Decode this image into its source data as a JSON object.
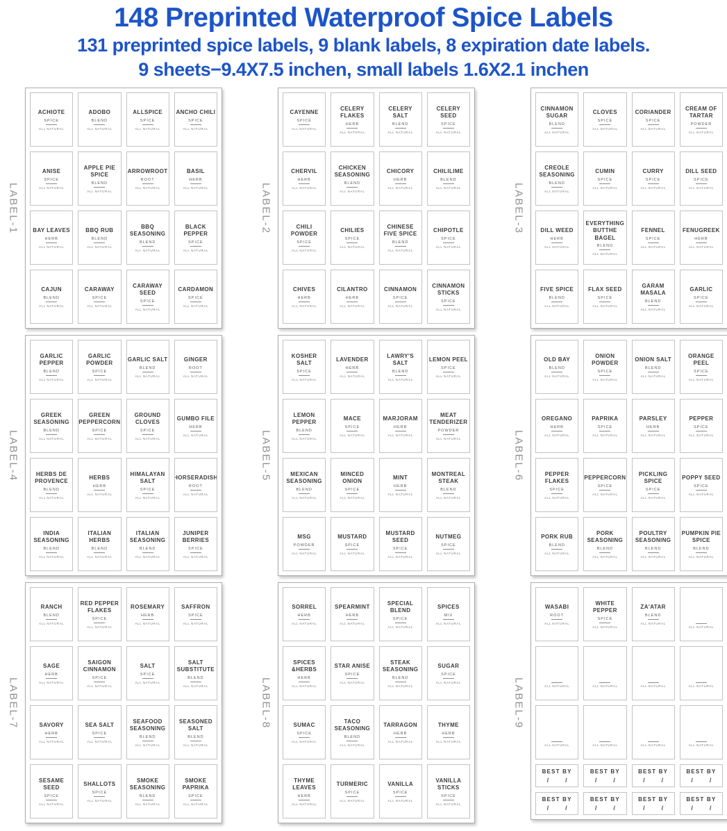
{
  "header": {
    "title": "148 Preprinted Waterproof Spice Labels",
    "subtitle1": "131 preprinted spice labels, 9 blank labels, 8 expiration date labels.",
    "subtitle2": "9 sheets−9.4X7.5 inchen, small labels 1.6X2.1 inchen"
  },
  "colors": {
    "title_blue": "#1d55c8",
    "label_text": "#3b3b3b",
    "side_label_gray": "#8f8f8f"
  },
  "common": {
    "footer": "ALL NATURAL",
    "best_by": "BEST BY",
    "slash": "/"
  },
  "sheets": [
    {
      "side_label": "LABEL-1",
      "cells": [
        {
          "name": "ACHIOTE",
          "type": "SPICE"
        },
        {
          "name": "ADOBO",
          "type": "BLEND"
        },
        {
          "name": "ALLSPICE",
          "type": "SPICE"
        },
        {
          "name": "ANCHO CHILI",
          "type": "SPICE"
        },
        {
          "name": "ANISE",
          "type": "SPICE"
        },
        {
          "name": "APPLE PIE SPICE",
          "type": "BLEND"
        },
        {
          "name": "ARROWROOT",
          "type": "ROOT"
        },
        {
          "name": "BASIL",
          "type": "HERB"
        },
        {
          "name": "BAY LEAVES",
          "type": "HERB"
        },
        {
          "name": "BBQ RUB",
          "type": "BLEND"
        },
        {
          "name": "BBQ SEASONING",
          "type": "BLEND"
        },
        {
          "name": "BLACK PEPPER",
          "type": "SPICE"
        },
        {
          "name": "CAJUN",
          "type": "BLEND"
        },
        {
          "name": "CARAWAY",
          "type": "SPICE"
        },
        {
          "name": "CARAWAY SEED",
          "type": "SPICE"
        },
        {
          "name": "CARDAMON",
          "type": "SPICE"
        }
      ]
    },
    {
      "side_label": "LABEL-2",
      "cells": [
        {
          "name": "CAYENNE",
          "type": "SPICE"
        },
        {
          "name": "CELERY FLAKES",
          "type": "HERB"
        },
        {
          "name": "CELERY SALT",
          "type": "BLEND"
        },
        {
          "name": "CELERY SEED",
          "type": "SPICE"
        },
        {
          "name": "CHERVIL",
          "type": "HERB"
        },
        {
          "name": "CHICKEN SEASONING",
          "type": "BLEND"
        },
        {
          "name": "CHICORY",
          "type": "HERB"
        },
        {
          "name": "CHILILIME",
          "type": "BLEND"
        },
        {
          "name": "CHILI POWDER",
          "type": "SPICE"
        },
        {
          "name": "CHILIES",
          "type": "SPICE"
        },
        {
          "name": "CHINESE FIVE SPICE",
          "type": "BLEND"
        },
        {
          "name": "CHIPOTLE",
          "type": "SPICE"
        },
        {
          "name": "CHIVES",
          "type": "HERB"
        },
        {
          "name": "CILANTRO",
          "type": "HERB"
        },
        {
          "name": "CINNAMON",
          "type": "SPICE"
        },
        {
          "name": "CINNAMON STICKS",
          "type": "SPICE"
        }
      ]
    },
    {
      "side_label": "LABEL-3",
      "cells": [
        {
          "name": "CINNAMON SUGAR",
          "type": "BLEND"
        },
        {
          "name": "CLOVES",
          "type": "SPICE"
        },
        {
          "name": "CORIANDER",
          "type": "SPICE"
        },
        {
          "name": "CREAM OF TARTAR",
          "type": "POWDER"
        },
        {
          "name": "CREOLE SEASONING",
          "type": "BLEND"
        },
        {
          "name": "CUMIN",
          "type": "SPICE"
        },
        {
          "name": "CURRY",
          "type": "SPICE"
        },
        {
          "name": "DILL SEED",
          "type": "SPICE"
        },
        {
          "name": "DILL WEED",
          "type": "HERB"
        },
        {
          "name": "EVERYTHING BUTTHE BAGEL",
          "type": "BLEND"
        },
        {
          "name": "FENNEL",
          "type": "SPICE"
        },
        {
          "name": "FENUGREEK",
          "type": "HERB"
        },
        {
          "name": "FIVE SPICE",
          "type": "BLEND"
        },
        {
          "name": "FLAX SEED",
          "type": "SPICE"
        },
        {
          "name": "GARAM MASALA",
          "type": "BLEND"
        },
        {
          "name": "GARLIC",
          "type": "SPICE"
        }
      ]
    },
    {
      "side_label": "LABEL-4",
      "cells": [
        {
          "name": "GARLIC PEPPER",
          "type": "BLEND"
        },
        {
          "name": "GARLIC POWDER",
          "type": "SPICE"
        },
        {
          "name": "GARLIC SALT",
          "type": "BLEND"
        },
        {
          "name": "GINGER",
          "type": "ROOT"
        },
        {
          "name": "GREEK SEASONING",
          "type": "BLEND"
        },
        {
          "name": "GREEN PEPPERCORN",
          "type": "SPICE"
        },
        {
          "name": "GROUND CLOVES",
          "type": "SPICE"
        },
        {
          "name": "GUMBO FILE",
          "type": "HERB"
        },
        {
          "name": "HERBS DE PROVENCE",
          "type": "BLEND"
        },
        {
          "name": "HERBS",
          "type": "HERB"
        },
        {
          "name": "HIMALAYAN SALT",
          "type": "SPICE"
        },
        {
          "name": "HORSERADISH",
          "type": "ROOT"
        },
        {
          "name": "INDIA SEASONING",
          "type": "BLEND"
        },
        {
          "name": "ITALIAN HERBS",
          "type": "BLEND"
        },
        {
          "name": "ITALIAN SEASONING",
          "type": "BLEND"
        },
        {
          "name": "JUNIPER BERRIES",
          "type": "SPICE"
        }
      ]
    },
    {
      "side_label": "LABEL-5",
      "cells": [
        {
          "name": "KOSHER SALT",
          "type": "SPICE"
        },
        {
          "name": "LAVENDER",
          "type": "HERB"
        },
        {
          "name": "LAWRY'S SALT",
          "type": "BLEND"
        },
        {
          "name": "LEMON PEEL",
          "type": "SPICE"
        },
        {
          "name": "LEMON PEPPER",
          "type": "BLEND"
        },
        {
          "name": "MACE",
          "type": "SPICE"
        },
        {
          "name": "MARJORAM",
          "type": "HERB"
        },
        {
          "name": "MEAT TENDERIZER",
          "type": "POWDER"
        },
        {
          "name": "MEXICAN SEASONING",
          "type": "BLEND"
        },
        {
          "name": "MINCED ONION",
          "type": "SPICE"
        },
        {
          "name": "MINT",
          "type": "HERB"
        },
        {
          "name": "MONTREAL STEAK",
          "type": "BLEND"
        },
        {
          "name": "MSG",
          "type": "POWDER"
        },
        {
          "name": "MUSTARD",
          "type": "SPICE"
        },
        {
          "name": "MUSTARD SEED",
          "type": "SPICE"
        },
        {
          "name": "NUTMEG",
          "type": "SPICE"
        }
      ]
    },
    {
      "side_label": "LABEL-6",
      "cells": [
        {
          "name": "OLD BAY",
          "type": "BLEND"
        },
        {
          "name": "ONION POWDER",
          "type": "SPICE"
        },
        {
          "name": "ONION SALT",
          "type": "BLEND"
        },
        {
          "name": "ORANGE PEEL",
          "type": "SPICE"
        },
        {
          "name": "OREGANO",
          "type": "HERB"
        },
        {
          "name": "PAPRIKA",
          "type": "SPICE"
        },
        {
          "name": "PARSLEY",
          "type": "HERB"
        },
        {
          "name": "PEPPER",
          "type": "SPICE"
        },
        {
          "name": "PEPPER FLAKES",
          "type": "SPICE"
        },
        {
          "name": "PEPPERCORN",
          "type": "SPICE"
        },
        {
          "name": "PICKLING SPICE",
          "type": "SPICE"
        },
        {
          "name": "POPPY SEED",
          "type": "SPICE"
        },
        {
          "name": "PORK RUB",
          "type": "BLEND"
        },
        {
          "name": "PORK SEASONING",
          "type": "BLEND"
        },
        {
          "name": "POULTRY SEASONING",
          "type": "BLEND"
        },
        {
          "name": "PUMPKIN PIE SPICE",
          "type": "BLEND"
        }
      ]
    },
    {
      "side_label": "LABEL-7",
      "cells": [
        {
          "name": "RANCH",
          "type": "BLEND"
        },
        {
          "name": "RED PEPPER FLAKES",
          "type": "SPICE"
        },
        {
          "name": "ROSEMARY",
          "type": "HERB"
        },
        {
          "name": "SAFFRON",
          "type": "SPICE"
        },
        {
          "name": "SAGE",
          "type": "HERB"
        },
        {
          "name": "SAIGON CINNAMON",
          "type": "SPICE"
        },
        {
          "name": "SALT",
          "type": "SPICE"
        },
        {
          "name": "SALT SUBSTITUTE",
          "type": "BLEND"
        },
        {
          "name": "SAVORY",
          "type": "HERB"
        },
        {
          "name": "SEA SALT",
          "type": "SPICE"
        },
        {
          "name": "SEAFOOD SEASONING",
          "type": "BLEND"
        },
        {
          "name": "SEASONED SALT",
          "type": "BLEND"
        },
        {
          "name": "SESAME SEED",
          "type": "SPICE"
        },
        {
          "name": "SHALLOTS",
          "type": "SPICE"
        },
        {
          "name": "SMOKE SEASONING",
          "type": "BLEND"
        },
        {
          "name": "SMOKE PAPRIKA",
          "type": "SPICE"
        }
      ]
    },
    {
      "side_label": "LABEL-8",
      "cells": [
        {
          "name": "SORREL",
          "type": "HERB"
        },
        {
          "name": "SPEARMINT",
          "type": "HERB"
        },
        {
          "name": "SPECIAL BLEND",
          "type": "SPICE"
        },
        {
          "name": "SPICES",
          "type": "MIX"
        },
        {
          "name": "SPICES &HERBS",
          "type": "HERB"
        },
        {
          "name": "STAR ANISE",
          "type": "SPICE"
        },
        {
          "name": "STEAK SEASONING",
          "type": "BLEND"
        },
        {
          "name": "SUGAR",
          "type": "SPICE"
        },
        {
          "name": "SUMAC",
          "type": "SPICE"
        },
        {
          "name": "TACO SEASONING",
          "type": "BLEND"
        },
        {
          "name": "TARRAGON",
          "type": "HERB"
        },
        {
          "name": "THYME",
          "type": "HERB"
        },
        {
          "name": "THYME LEAVES",
          "type": "HERB"
        },
        {
          "name": "TURMERIC",
          "type": "SPICE"
        },
        {
          "name": "VANILLA",
          "type": "SPICE"
        },
        {
          "name": "VANILLA STICKS",
          "type": "SPICE"
        }
      ]
    },
    {
      "side_label": "LABEL-9",
      "cells": [
        {
          "name": "WASABI",
          "type": "ROOT"
        },
        {
          "name": "WHITE PEPPER",
          "type": "SPICE"
        },
        {
          "name": "ZA'ATAR",
          "type": "BLEND"
        },
        {
          "blank": true
        },
        {
          "blank": true
        },
        {
          "blank": true
        },
        {
          "blank": true
        },
        {
          "blank": true
        },
        {
          "blank": true
        },
        {
          "blank": true
        },
        {
          "blank": true
        },
        {
          "blank": true
        },
        {
          "bestby": true
        },
        {
          "bestby": true
        },
        {
          "bestby": true
        },
        {
          "bestby": true
        },
        {
          "bestby": true
        },
        {
          "bestby": true
        },
        {
          "bestby": true
        },
        {
          "bestby": true
        }
      ]
    }
  ]
}
